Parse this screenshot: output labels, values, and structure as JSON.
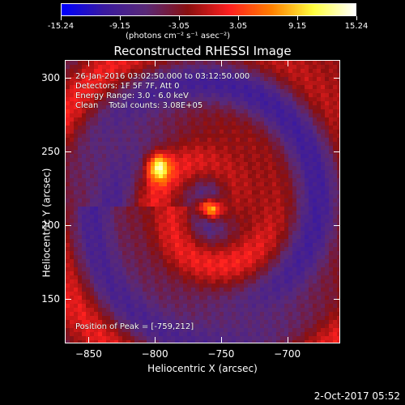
{
  "chart_data": {
    "type": "heatmap",
    "title": "Reconstructed RHESSI Image",
    "xlabel": "Heliocentric X (arcsec)",
    "ylabel": "Heliocentric Y (arcsec)",
    "xlim": [
      -868,
      -660
    ],
    "ylim": [
      120,
      312
    ],
    "x_ticks": [
      -850,
      -800,
      -750,
      -700
    ],
    "y_ticks": [
      150,
      200,
      250,
      300
    ],
    "colorbar": {
      "range": [
        -15.24,
        15.24
      ],
      "ticks": [
        "-15.24",
        "-9.15",
        "-3.05",
        "3.05",
        "9.15",
        "15.24"
      ],
      "unit_label": "(photons cm⁻² s⁻¹ asec⁻²)",
      "colormap": [
        "#0000ff",
        "#3a1aa0",
        "#5a2a78",
        "#8a1010",
        "#ff2020",
        "#ff8000",
        "#ffff40",
        "#ffffff"
      ]
    },
    "annotations": [
      "26-Jan-2016 03:02:50.000 to 03:12:50.000",
      "Detectors: 1F 5F 7F, Att 0",
      "Energy Range: 3.0 - 6.0 keV",
      "Clean    Total counts: 3.08E+05"
    ],
    "peak_label": "Position of Peak = [-759,212]",
    "peak": {
      "x": -759,
      "y": 212,
      "value": 15.24
    },
    "secondary_source": {
      "x": -798,
      "y": 240,
      "value": 10.5
    }
  },
  "timestamp": "2-Oct-2017 05:52"
}
